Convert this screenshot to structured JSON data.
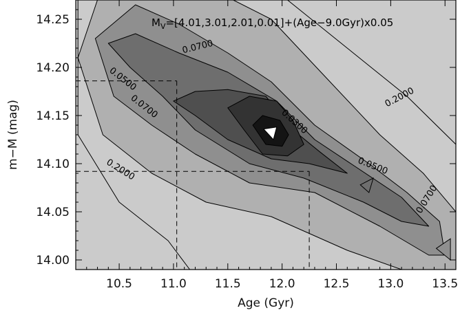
{
  "chart_data": {
    "type": "contour",
    "xlabel": "Age (Gyr)",
    "ylabel": "m−M (mag)",
    "xlim": [
      10.1,
      13.6
    ],
    "ylim": [
      13.99,
      14.27
    ],
    "x_ticks": [
      10.5,
      11.0,
      11.5,
      12.0,
      12.5,
      13.0,
      13.5
    ],
    "y_ticks": [
      14.0,
      14.05,
      14.1,
      14.15,
      14.2,
      14.25
    ],
    "x_tick_labels": [
      "10.5",
      "11.0",
      "11.5",
      "12.0",
      "12.5",
      "13.0",
      "13.5"
    ],
    "y_tick_labels": [
      "14.00",
      "14.05",
      "14.10",
      "14.15",
      "14.20",
      "14.25"
    ],
    "annotation": {
      "prefix": "M",
      "subscript": "V",
      "rest": "=[4.01,3.01,2.01,0.01]+(Age−9.0Gyr)x0.05"
    },
    "contour_labels": [
      "0.0700",
      "0.0500",
      "0.0700",
      "0.2000",
      "0.0300",
      "0.0500",
      "0.0700",
      "0.2000",
      "0.2000"
    ],
    "best_fit": {
      "age": 11.9,
      "distance_modulus": 14.132
    },
    "error_bounds": {
      "age": [
        11.03,
        12.25
      ],
      "distance_modulus": [
        14.092,
        14.186
      ]
    },
    "contour_levels": [
      {
        "level": "outer",
        "color": "#cbcbcb",
        "points": [
          [
            10.12,
            14.27
          ],
          [
            10.12,
            14.13
          ],
          [
            10.5,
            14.06
          ],
          [
            10.95,
            14.02
          ],
          [
            11.15,
            13.99
          ],
          [
            13.6,
            13.99
          ],
          [
            13.6,
            14.12
          ],
          [
            13.15,
            14.17
          ],
          [
            12.6,
            14.22
          ],
          [
            12.05,
            14.27
          ]
        ]
      },
      {
        "level": "0.2000",
        "color": "#b0b0b0",
        "points": [
          [
            10.12,
            14.21
          ],
          [
            10.35,
            14.13
          ],
          [
            10.8,
            14.09
          ],
          [
            11.3,
            14.06
          ],
          [
            11.9,
            14.045
          ],
          [
            12.6,
            14.01
          ],
          [
            13.1,
            13.99
          ],
          [
            13.6,
            13.99
          ],
          [
            13.6,
            14.05
          ],
          [
            13.3,
            14.09
          ],
          [
            12.9,
            14.13
          ],
          [
            12.4,
            14.19
          ],
          [
            11.9,
            14.25
          ],
          [
            11.55,
            14.27
          ],
          [
            10.3,
            14.27
          ]
        ]
      },
      {
        "level": "0.0700",
        "color": "#8f8f8f",
        "points": [
          [
            10.28,
            14.23
          ],
          [
            10.45,
            14.17
          ],
          [
            10.8,
            14.14
          ],
          [
            11.2,
            14.11
          ],
          [
            11.7,
            14.08
          ],
          [
            12.3,
            14.07
          ],
          [
            12.9,
            14.035
          ],
          [
            13.35,
            14.005
          ],
          [
            13.5,
            14.005
          ],
          [
            13.45,
            14.04
          ],
          [
            13.15,
            14.07
          ],
          [
            12.8,
            14.1
          ],
          [
            12.3,
            14.14
          ],
          [
            11.9,
            14.185
          ],
          [
            11.5,
            14.215
          ],
          [
            11.05,
            14.245
          ],
          [
            10.65,
            14.265
          ]
        ]
      },
      {
        "level": "0.0500",
        "color": "#6e6e6e",
        "points": [
          [
            10.4,
            14.225
          ],
          [
            10.6,
            14.2
          ],
          [
            10.9,
            14.17
          ],
          [
            11.2,
            14.135
          ],
          [
            11.7,
            14.1
          ],
          [
            12.2,
            14.085
          ],
          [
            12.75,
            14.06
          ],
          [
            13.1,
            14.04
          ],
          [
            13.35,
            14.035
          ],
          [
            13.1,
            14.065
          ],
          [
            12.7,
            14.095
          ],
          [
            12.3,
            14.125
          ],
          [
            11.95,
            14.165
          ],
          [
            11.5,
            14.195
          ],
          [
            11.05,
            14.215
          ],
          [
            10.65,
            14.235
          ]
        ]
      },
      {
        "level": "0.0400",
        "color": "#4f4f4f",
        "points": [
          [
            11.0,
            14.165
          ],
          [
            11.2,
            14.15
          ],
          [
            11.5,
            14.125
          ],
          [
            11.9,
            14.105
          ],
          [
            12.25,
            14.1
          ],
          [
            12.6,
            14.09
          ],
          [
            12.35,
            14.112
          ],
          [
            12.1,
            14.135
          ],
          [
            11.85,
            14.17
          ],
          [
            11.5,
            14.177
          ],
          [
            11.2,
            14.175
          ]
        ]
      },
      {
        "level": "0.0300",
        "color": "#333333",
        "points": [
          [
            11.5,
            14.158
          ],
          [
            11.65,
            14.135
          ],
          [
            11.82,
            14.11
          ],
          [
            12.05,
            14.108
          ],
          [
            12.2,
            14.12
          ],
          [
            12.1,
            14.145
          ],
          [
            11.95,
            14.165
          ],
          [
            11.7,
            14.17
          ]
        ]
      },
      {
        "level": "0.0200",
        "color": "#141414",
        "points": [
          [
            11.73,
            14.14
          ],
          [
            11.85,
            14.12
          ],
          [
            12.0,
            14.118
          ],
          [
            12.06,
            14.13
          ],
          [
            11.98,
            14.145
          ],
          [
            11.82,
            14.15
          ]
        ]
      },
      {
        "level": "min",
        "color": "#ffffff",
        "points": [
          [
            11.83,
            14.136
          ],
          [
            11.92,
            14.125
          ],
          [
            11.95,
            14.138
          ]
        ]
      }
    ],
    "islands": [
      {
        "color": "#6e6e6e",
        "points": [
          [
            12.72,
            14.078
          ],
          [
            12.8,
            14.07
          ],
          [
            12.84,
            14.085
          ]
        ]
      },
      {
        "color": "#8f8f8f",
        "points": [
          [
            13.42,
            14.012
          ],
          [
            13.55,
            14.0
          ],
          [
            13.55,
            14.022
          ]
        ]
      }
    ]
  }
}
